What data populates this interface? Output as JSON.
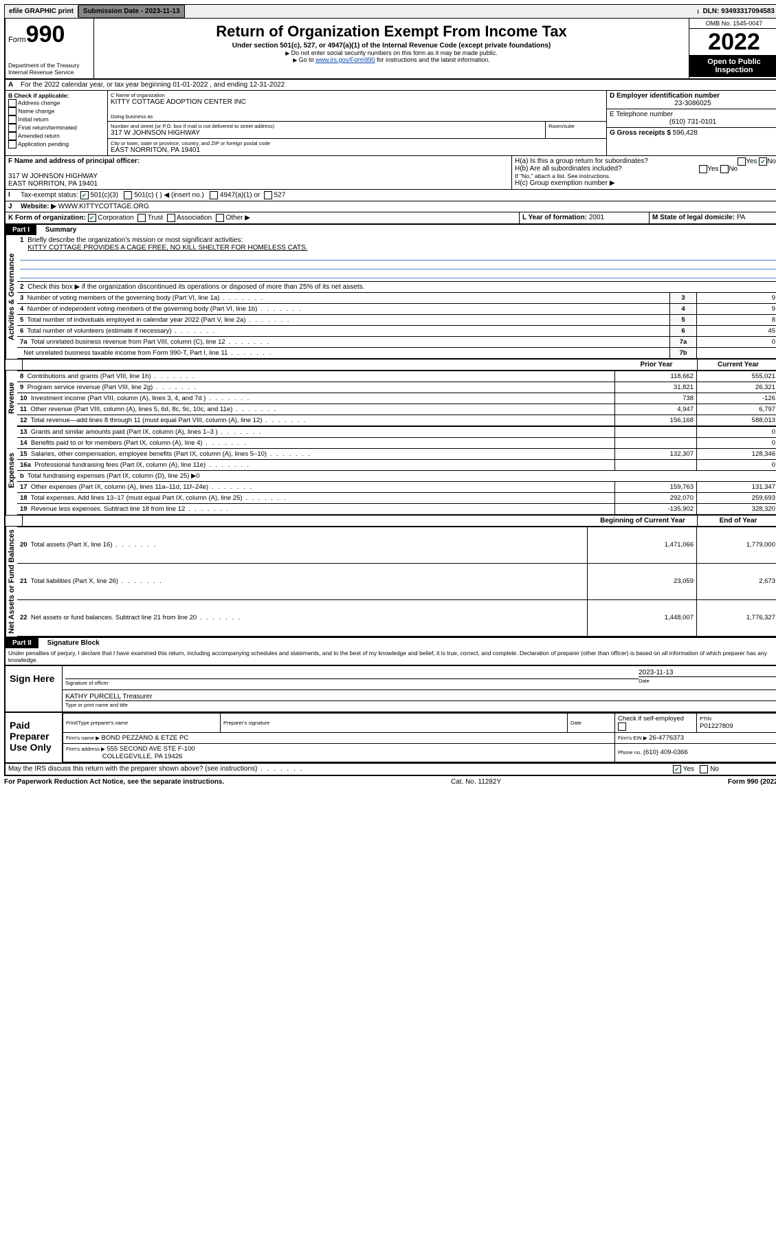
{
  "topbar": {
    "efile": "efile GRAPHIC print",
    "sub_label": "Submission Date - 2023-11-13",
    "dln": "DLN: 93493317094583"
  },
  "header": {
    "form_label": "Form",
    "form_num": "990",
    "dept": "Department of the Treasury",
    "irs": "Internal Revenue Service",
    "title": "Return of Organization Exempt From Income Tax",
    "subtitle": "Under section 501(c), 527, or 4947(a)(1) of the Internal Revenue Code (except private foundations)",
    "note1": "Do not enter social security numbers on this form as it may be made public.",
    "note2_pre": "Go to ",
    "note2_link": "www.irs.gov/Form990",
    "note2_post": " for instructions and the latest information.",
    "omb": "OMB No. 1545-0047",
    "year": "2022",
    "open": "Open to Public Inspection"
  },
  "periodA": "For the 2022 calendar year, or tax year beginning 01-01-2022   , and ending 12-31-2022",
  "B": {
    "label": "B Check if applicable:",
    "addr": "Address change",
    "name": "Name change",
    "init": "Initial return",
    "final": "Final return/terminated",
    "amend": "Amended return",
    "app": "Application pending"
  },
  "C": {
    "label": "C Name of organization",
    "org": "KITTY COTTAGE ADOPTION CENTER INC",
    "dba_label": "Doing business as",
    "addr_label": "Number and street (or P.O. box if mail is not delivered to street address)",
    "room_label": "Room/suite",
    "street": "317 W JOHNSON HIGHWAY",
    "city_label": "City or town, state or province, country, and ZIP or foreign postal code",
    "city": "EAST NORRITON, PA  19401"
  },
  "D": {
    "label": "D Employer identification number",
    "val": "23-3086025"
  },
  "E": {
    "label": "E Telephone number",
    "val": "(610) 731-0101"
  },
  "G": {
    "label": "G Gross receipts $",
    "val": "596,428"
  },
  "F": {
    "label": "F  Name and address of principal officer:",
    "line1": "317 W JOHNSON HIGHWAY",
    "line2": "EAST NORRITON, PA  19401"
  },
  "H": {
    "a": "H(a)  Is this a group return for subordinates?",
    "b": "H(b)  Are all subordinates included?",
    "b_note": "If \"No,\" attach a list. See instructions.",
    "c": "H(c)  Group exemption number ▶"
  },
  "I": {
    "label": "Tax-exempt status:",
    "c3": "501(c)(3)",
    "c": "501(c) (  ) ◀ (insert no.)",
    "a1": "4947(a)(1) or",
    "s527": "527"
  },
  "J": {
    "label": "Website: ▶",
    "val": "WWW.KITTYCOTTAGE.ORG"
  },
  "K": {
    "label": "K Form of organization:",
    "corp": "Corporation",
    "trust": "Trust",
    "assoc": "Association",
    "other": "Other ▶"
  },
  "L": {
    "label": "L Year of formation:",
    "val": "2001"
  },
  "M": {
    "label": "M State of legal domicile:",
    "val": "PA"
  },
  "part1": {
    "title": "Part I",
    "sub": "Summary",
    "q1_label": "Briefly describe the organization's mission or most significant activities:",
    "q1_val": "KITTY COTTAGE PROVIDES A CAGE FREE, NO KILL SHELTER FOR HOMELESS CATS.",
    "q2": "Check this box ▶        if the organization discontinued its operations or disposed of more than 25% of its net assets.",
    "lines": [
      {
        "n": "3",
        "t": "Number of voting members of the governing body (Part VI, line 1a)",
        "k": "3",
        "v": "9"
      },
      {
        "n": "4",
        "t": "Number of independent voting members of the governing body (Part VI, line 1b)",
        "k": "4",
        "v": "9"
      },
      {
        "n": "5",
        "t": "Total number of individuals employed in calendar year 2022 (Part V, line 2a)",
        "k": "5",
        "v": "8"
      },
      {
        "n": "6",
        "t": "Total number of volunteers (estimate if necessary)",
        "k": "6",
        "v": "45"
      },
      {
        "n": "7a",
        "t": "Total unrelated business revenue from Part VIII, column (C), line 12",
        "k": "7a",
        "v": "0"
      },
      {
        "n": "",
        "t": "Net unrelated business taxable income from Form 990-T, Part I, line 11",
        "k": "7b",
        "v": ""
      }
    ],
    "col_prior": "Prior Year",
    "col_current": "Current Year",
    "rev": [
      {
        "n": "8",
        "t": "Contributions and grants (Part VIII, line 1h)",
        "p": "118,662",
        "c": "555,021"
      },
      {
        "n": "9",
        "t": "Program service revenue (Part VIII, line 2g)",
        "p": "31,821",
        "c": "26,321"
      },
      {
        "n": "10",
        "t": "Investment income (Part VIII, column (A), lines 3, 4, and 7d )",
        "p": "738",
        "c": "-126"
      },
      {
        "n": "11",
        "t": "Other revenue (Part VIII, column (A), lines 5, 6d, 8c, 9c, 10c, and 11e)",
        "p": "4,947",
        "c": "6,797"
      },
      {
        "n": "12",
        "t": "Total revenue—add lines 8 through 11 (must equal Part VIII, column (A), line 12)",
        "p": "156,168",
        "c": "588,013"
      }
    ],
    "exp": [
      {
        "n": "13",
        "t": "Grants and similar amounts paid (Part IX, column (A), lines 1–3 )",
        "p": "",
        "c": "0"
      },
      {
        "n": "14",
        "t": "Benefits paid to or for members (Part IX, column (A), line 4)",
        "p": "",
        "c": "0"
      },
      {
        "n": "15",
        "t": "Salaries, other compensation, employee benefits (Part IX, column (A), lines 5–10)",
        "p": "132,307",
        "c": "128,346"
      },
      {
        "n": "16a",
        "t": "Professional fundraising fees (Part IX, column (A), line 11e)",
        "p": "",
        "c": "0"
      },
      {
        "n": "b",
        "t": "Total fundraising expenses (Part IX, column (D), line 25) ▶0",
        "p": null,
        "c": null
      },
      {
        "n": "17",
        "t": "Other expenses (Part IX, column (A), lines 11a–11d, 11f–24e)",
        "p": "159,763",
        "c": "131,347"
      },
      {
        "n": "18",
        "t": "Total expenses. Add lines 13–17 (must equal Part IX, column (A), line 25)",
        "p": "292,070",
        "c": "259,693"
      },
      {
        "n": "19",
        "t": "Revenue less expenses. Subtract line 18 from line 12",
        "p": "-135,902",
        "c": "328,320"
      }
    ],
    "col_begin": "Beginning of Current Year",
    "col_end": "End of Year",
    "net": [
      {
        "n": "20",
        "t": "Total assets (Part X, line 16)",
        "p": "1,471,066",
        "c": "1,779,000"
      },
      {
        "n": "21",
        "t": "Total liabilities (Part X, line 26)",
        "p": "23,059",
        "c": "2,673"
      },
      {
        "n": "22",
        "t": "Net assets or fund balances. Subtract line 21 from line 20",
        "p": "1,448,007",
        "c": "1,776,327"
      }
    ],
    "vlabels": {
      "gov": "Activities & Governance",
      "rev": "Revenue",
      "exp": "Expenses",
      "net": "Net Assets or Fund Balances"
    }
  },
  "part2": {
    "title": "Part II",
    "sub": "Signature Block",
    "decl": "Under penalties of perjury, I declare that I have examined this return, including accompanying schedules and statements, and to the best of my knowledge and belief, it is true, correct, and complete. Declaration of preparer (other than officer) is based on all information of which preparer has any knowledge.",
    "sign_here": "Sign Here",
    "sig_officer": "Signature of officer",
    "date_label": "Date",
    "sig_date": "2023-11-13",
    "name_title": "KATHY PURCELL Treasurer",
    "type_name": "Type or print name and title",
    "paid": "Paid Preparer Use Only",
    "prep_name_label": "Print/Type preparer's name",
    "prep_sig_label": "Preparer's signature",
    "check_label": "Check         if self-employed",
    "ptin_label": "PTIN",
    "ptin": "P01227809",
    "firm_name_label": "Firm's name     ▶",
    "firm_name": "BOND PEZZANO & ETZE PC",
    "firm_ein_label": "Firm's EIN ▶",
    "firm_ein": "26-4776373",
    "firm_addr_label": "Firm's address ▶",
    "firm_addr1": "555 SECOND AVE STE F-100",
    "firm_addr2": "COLLEGEVILLE, PA  19426",
    "phone_label": "Phone no.",
    "phone": "(610) 409-0366",
    "may_irs": "May the IRS discuss this return with the preparer shown above? (see instructions)",
    "yes": "Yes",
    "no": "No"
  },
  "footer": {
    "left": "For Paperwork Reduction Act Notice, see the separate instructions.",
    "mid": "Cat. No. 11282Y",
    "right": "Form 990 (2022)"
  }
}
